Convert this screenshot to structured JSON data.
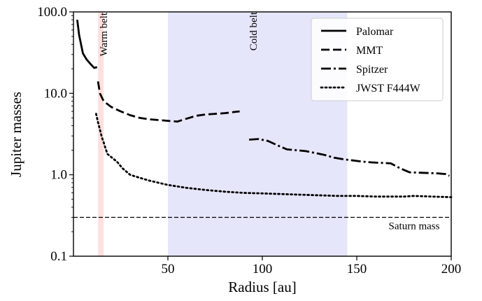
{
  "chart_data": {
    "type": "line",
    "xlabel": "Radius [au]",
    "ylabel": "Jupiter masses",
    "xlim": [
      0,
      200
    ],
    "ylim": [
      0.1,
      100
    ],
    "yscale": "log",
    "x_ticks": [
      50,
      100,
      150,
      200
    ],
    "x_tick_labels": [
      "50",
      "100",
      "150",
      "200"
    ],
    "y_ticks": [
      0.1,
      1,
      10,
      100
    ],
    "y_tick_labels": [
      "0.1",
      "1.0",
      "10.0",
      "100.0"
    ],
    "grid": false,
    "legend_position": "top-right",
    "series": [
      {
        "name": "Palomar",
        "style": "solid",
        "x": [
          2,
          3,
          5,
          7,
          9,
          11,
          12.5
        ],
        "y": [
          80,
          52,
          31,
          26,
          23,
          20.5,
          21
        ]
      },
      {
        "name": "MMT",
        "style": "dashed",
        "x": [
          13,
          14,
          16,
          20,
          25,
          30,
          35,
          40,
          45,
          50,
          55,
          60,
          65,
          70,
          75,
          80,
          85,
          88
        ],
        "y": [
          14,
          10,
          8,
          6.8,
          6,
          5.4,
          5,
          4.8,
          4.7,
          4.6,
          4.5,
          4.9,
          5.3,
          5.5,
          5.6,
          5.7,
          5.9,
          6
        ]
      },
      {
        "name": "Spitzer",
        "style": "dashdot",
        "x": [
          93,
          98,
          103,
          108,
          113,
          118,
          123,
          128,
          133,
          138,
          143,
          148,
          153,
          158,
          163,
          168,
          173,
          178,
          183,
          188,
          193,
          197,
          199
        ],
        "y": [
          2.7,
          2.75,
          2.6,
          2.3,
          2.05,
          2.0,
          1.95,
          1.85,
          1.75,
          1.62,
          1.55,
          1.5,
          1.45,
          1.42,
          1.4,
          1.38,
          1.2,
          1.07,
          1.06,
          1.05,
          1.04,
          1.02,
          0.97
        ]
      },
      {
        "name": "JWST F444W",
        "style": "dotted",
        "x": [
          12,
          13,
          14,
          15,
          16,
          17,
          18,
          20,
          23,
          26,
          30,
          35,
          40,
          50,
          60,
          70,
          80,
          90,
          100,
          110,
          120,
          130,
          140,
          150,
          160,
          170,
          175,
          180,
          190,
          200
        ],
        "y": [
          5.6,
          4.4,
          3.6,
          2.9,
          2.5,
          2.1,
          1.8,
          1.65,
          1.45,
          1.2,
          1.0,
          0.92,
          0.85,
          0.75,
          0.69,
          0.65,
          0.62,
          0.6,
          0.59,
          0.58,
          0.57,
          0.56,
          0.55,
          0.55,
          0.54,
          0.54,
          0.54,
          0.55,
          0.54,
          0.53
        ]
      }
    ],
    "bands": [
      {
        "label": "Warm belt",
        "x_range": [
          13,
          16
        ],
        "color": "#ffe0e0"
      },
      {
        "label": "Cold belt",
        "x_range": [
          50,
          145
        ],
        "color": "#e6e6fb"
      }
    ],
    "reference_lines": [
      {
        "label": "Saturn mass",
        "y": 0.3,
        "style": "dashed"
      }
    ]
  }
}
